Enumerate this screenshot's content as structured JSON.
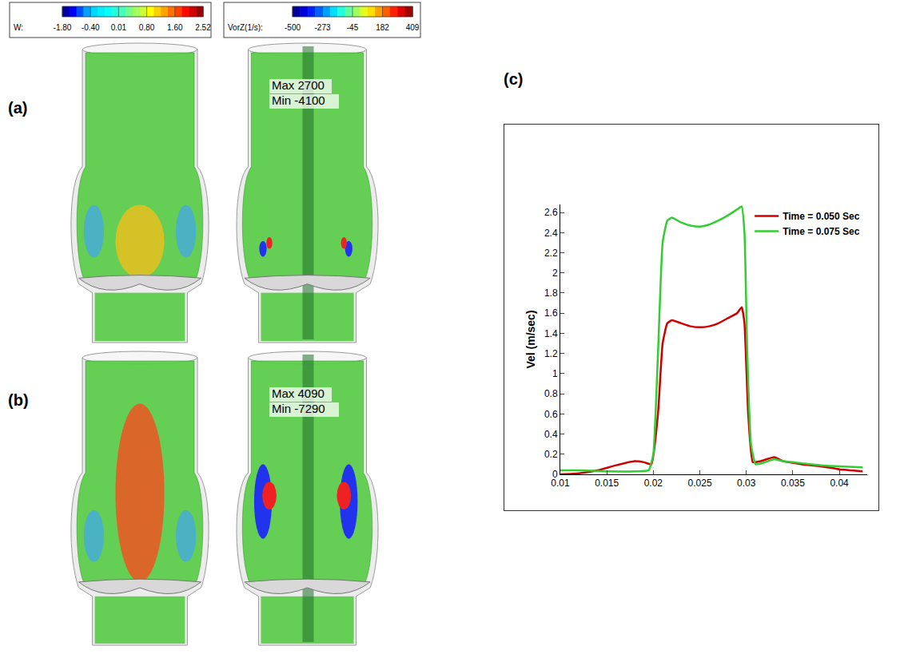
{
  "colorbars": [
    {
      "label": "W:",
      "ticks": [
        {
          "value": -1.8,
          "label": "-1.80"
        },
        {
          "value": -0.4,
          "label": "-0.40"
        },
        0.01,
        {
          "value": 0.8,
          "label": "0.80"
        },
        {
          "value": 1.6,
          "label": "1.60"
        },
        2.52
      ]
    },
    {
      "label": "VorZ(1/s):",
      "ticks": [
        -500,
        -273,
        -45,
        182,
        409
      ]
    }
  ],
  "panels": [
    {
      "label": "(a)",
      "vorticity_note": [
        "Max 2700",
        "Min -4100"
      ]
    },
    {
      "label": "(b)",
      "vorticity_note": [
        "Max 4090",
        "Min -7290"
      ]
    }
  ],
  "chart_data": {
    "label": "(c)",
    "type": "line",
    "y_label": "Vel (m/sec)",
    "xlim": [
      0.01,
      0.043
    ],
    "xticks": [
      0.01,
      0.015,
      0.02,
      0.025,
      0.03,
      0.035,
      0.04
    ],
    "ylim": [
      0,
      2.68
    ],
    "yticks": [
      0,
      0.2,
      0.4,
      0.6,
      0.8,
      1,
      1.2,
      1.4,
      1.6,
      1.8,
      2,
      2.2,
      2.4,
      2.6
    ],
    "grid": false,
    "legend": "top right",
    "series": [
      {
        "name": "Time = 0.050 Sec",
        "color": "#cc0000",
        "x": [
          0.01,
          0.012,
          0.014,
          0.016,
          0.018,
          0.019,
          0.0198,
          0.0205,
          0.021,
          0.0215,
          0.022,
          0.023,
          0.024,
          0.025,
          0.026,
          0.027,
          0.028,
          0.029,
          0.0295,
          0.0298,
          0.0302,
          0.0307,
          0.0315,
          0.033,
          0.034,
          0.036,
          0.038,
          0.04,
          0.0425
        ],
        "values": [
          0.0,
          0.01,
          0.04,
          0.09,
          0.13,
          0.12,
          0.1,
          0.6,
          1.3,
          1.5,
          1.53,
          1.5,
          1.47,
          1.46,
          1.47,
          1.5,
          1.55,
          1.6,
          1.66,
          1.5,
          0.6,
          0.12,
          0.13,
          0.17,
          0.13,
          0.1,
          0.08,
          0.05,
          0.03
        ]
      },
      {
        "name": "Time = 0.075 Sec",
        "color": "#33cc33",
        "x": [
          0.01,
          0.012,
          0.015,
          0.018,
          0.0195,
          0.02,
          0.0205,
          0.021,
          0.0215,
          0.022,
          0.023,
          0.024,
          0.025,
          0.026,
          0.027,
          0.028,
          0.029,
          0.0295,
          0.0298,
          0.0301,
          0.0305,
          0.031,
          0.032,
          0.033,
          0.034,
          0.036,
          0.038,
          0.04,
          0.0425
        ],
        "values": [
          0.04,
          0.04,
          0.03,
          0.03,
          0.04,
          0.2,
          1.2,
          2.3,
          2.52,
          2.55,
          2.5,
          2.47,
          2.46,
          2.48,
          2.52,
          2.57,
          2.63,
          2.66,
          2.4,
          1.2,
          0.3,
          0.1,
          0.12,
          0.15,
          0.13,
          0.11,
          0.09,
          0.08,
          0.07
        ]
      }
    ]
  }
}
